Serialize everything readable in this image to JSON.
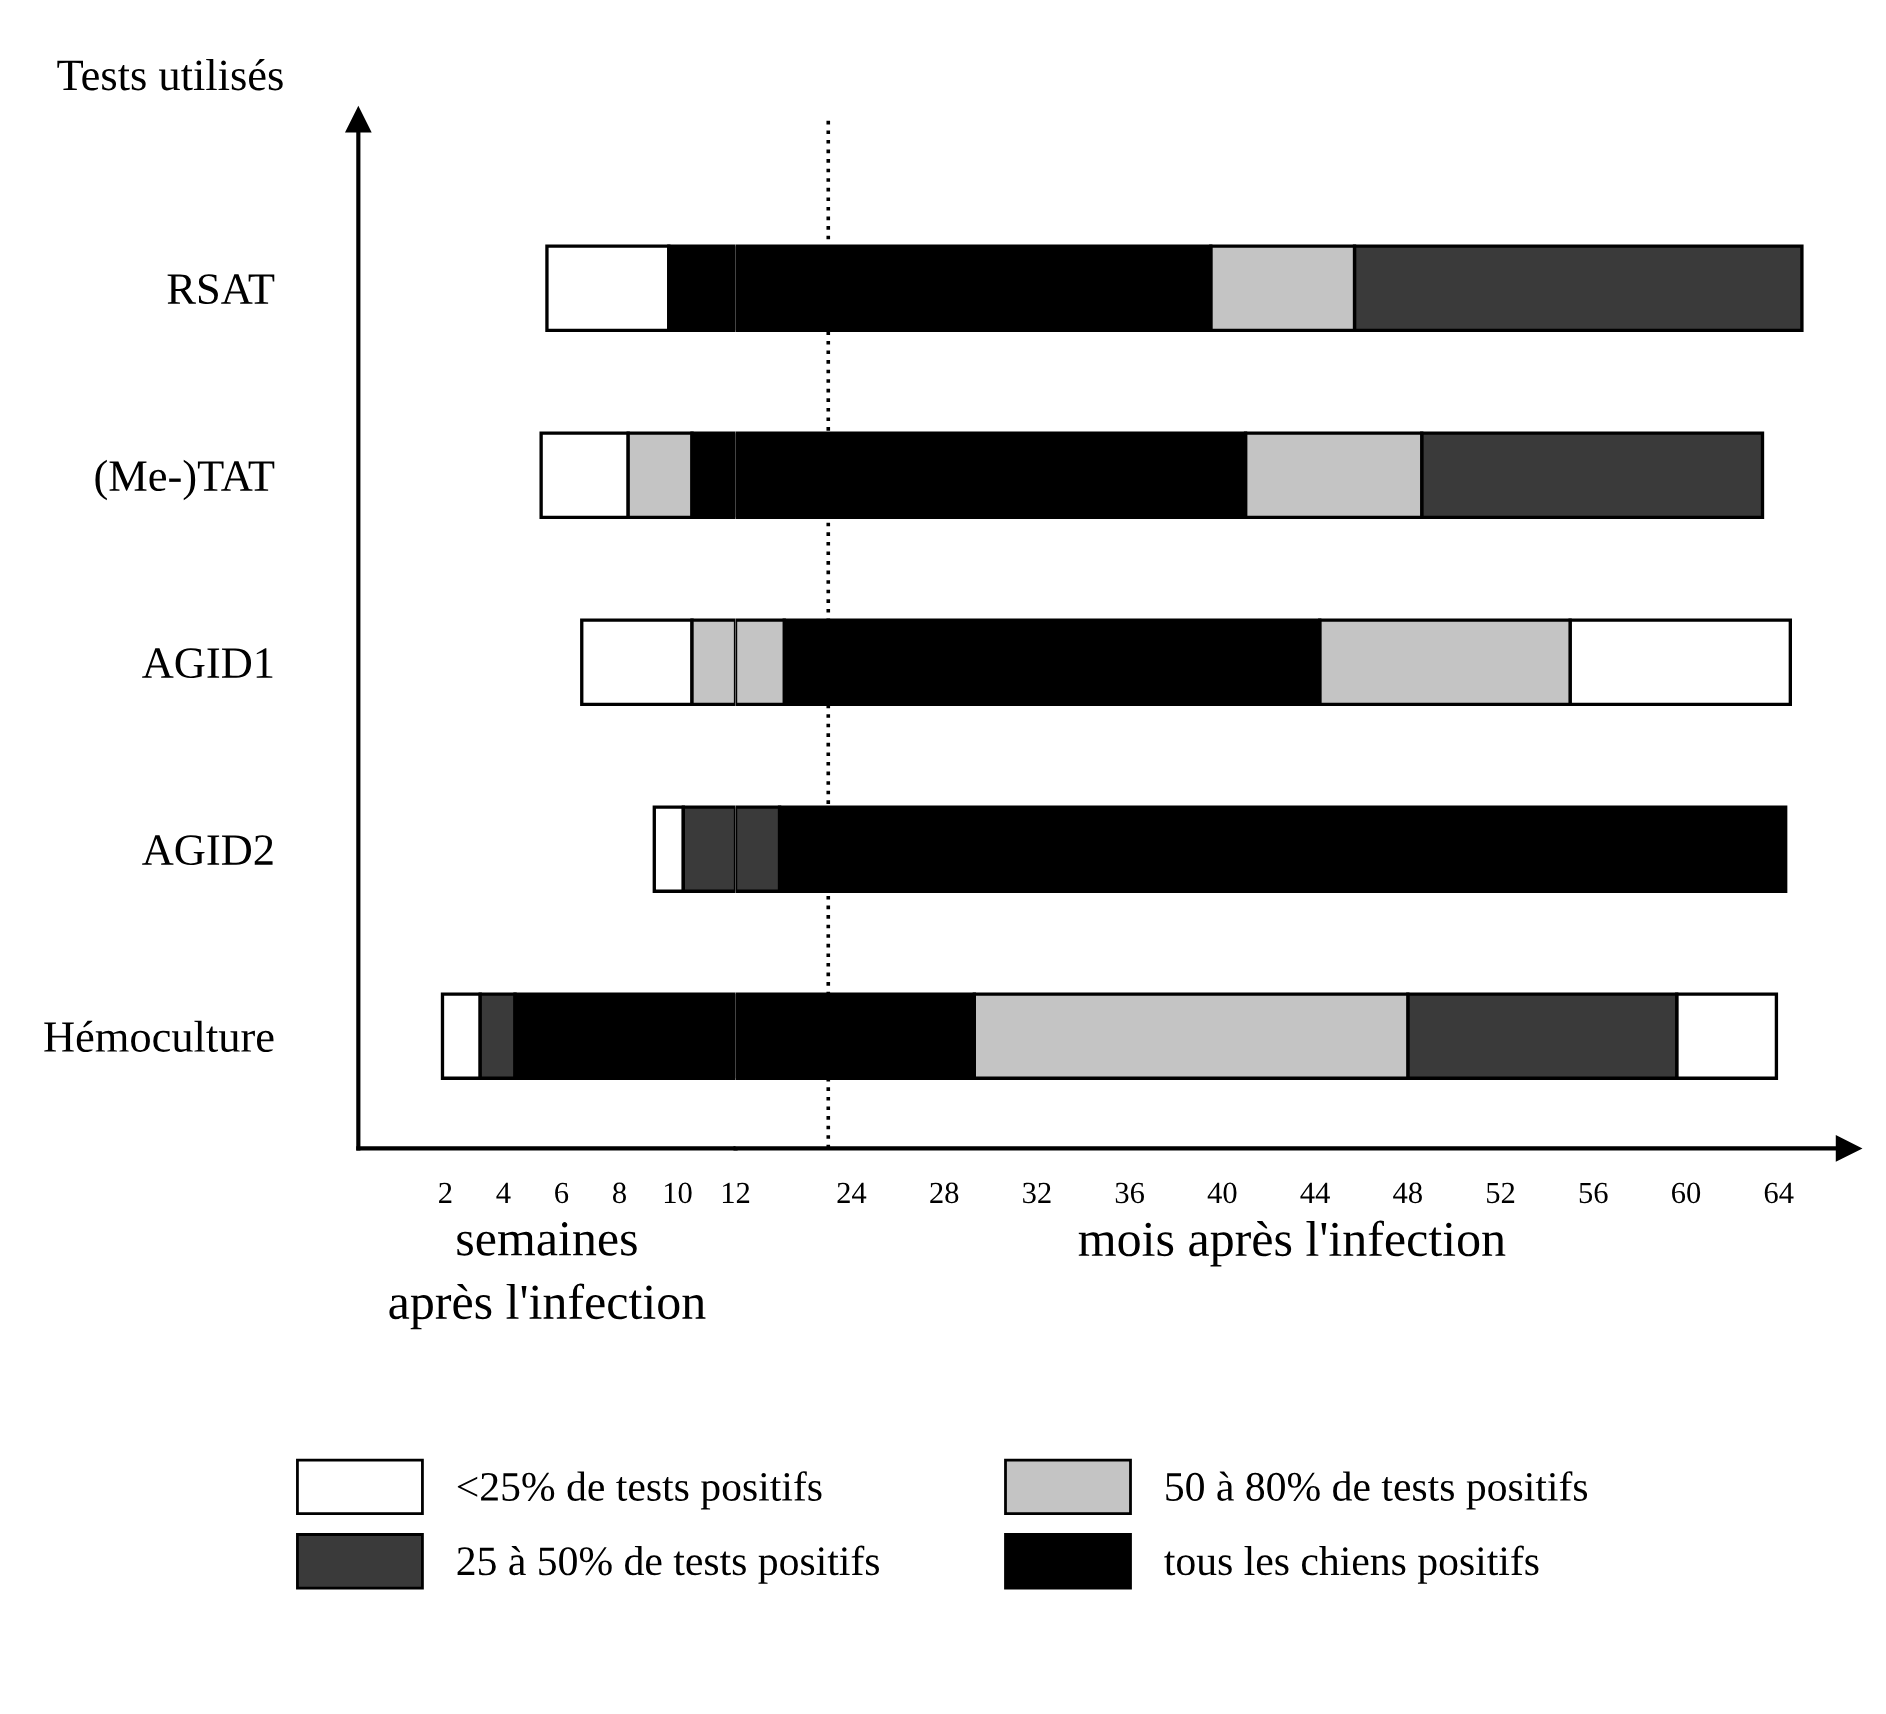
{
  "chart_data": [
    {
      "type": "bar",
      "orientation": "horizontal",
      "categories": [
        "RSAT",
        "(Me-)TAT",
        "AGID1",
        "AGID2",
        "Hémoculture"
      ],
      "ylabel": "Tests utilisés",
      "xlabel": "semaines\naprès l'infection",
      "series": [
        {
          "name": "<25% de tests positifs",
          "color": "#ffffff",
          "base": [
            5.5,
            5.3,
            6.7,
            9.2,
            1.9
          ],
          "values": [
            4.2,
            3.0,
            3.8,
            1.0,
            1.3
          ]
        },
        {
          "name": "25 à 50% de tests positifs",
          "color": "#3a3a3a",
          "base": [
            null,
            null,
            null,
            10.2,
            3.2
          ],
          "values": [
            null,
            null,
            null,
            1.8,
            1.2
          ]
        },
        {
          "name": "50 à 80% de tests positifs",
          "color": "#c4c4c4",
          "base": [
            null,
            8.3,
            10.5,
            null,
            null
          ],
          "values": [
            null,
            2.2,
            1.5,
            null,
            null
          ]
        },
        {
          "name": "tous les chiens positifs",
          "color": "#000000",
          "base": [
            9.7,
            10.5,
            null,
            null,
            4.4
          ],
          "values": [
            2.3,
            1.5,
            null,
            null,
            7.6
          ]
        }
      ],
      "xlim": [
        -1,
        12
      ],
      "xticks": [
        2,
        4,
        6,
        8,
        10,
        12
      ],
      "grid": false,
      "legend": "bottom"
    },
    {
      "type": "bar",
      "orientation": "horizontal",
      "categories": [
        null,
        null,
        null,
        null,
        null
      ],
      "xlabel": "mois après l'infection",
      "tick_labels": "x",
      "series": [
        {
          "color": "#ffffff",
          "base": [
            null,
            null,
            55.0,
            null,
            59.6
          ],
          "values": [
            null,
            null,
            9.5,
            null,
            4.3
          ]
        },
        {
          "color": "#3a3a3a",
          "base": [
            45.7,
            48.6,
            null,
            19,
            48.0
          ],
          "values": [
            19.3,
            14.7,
            null,
            1.9,
            11.6
          ]
        },
        {
          "color": "#c4c4c4",
          "base": [
            39.5,
            41.0,
            44.2,
            null,
            29.3
          ],
          "values": [
            6.2,
            7.6,
            10.8,
            null,
            18.7
          ]
        },
        {
          "color": "#000000",
          "base": [
            19,
            19,
            21.1,
            20.9,
            19
          ],
          "values": [
            20.5,
            22.0,
            23.1,
            43.4,
            10.3
          ]
        },
        {
          "color": "#c4c4c4",
          "base": [
            null,
            null,
            19,
            null,
            null
          ],
          "values": [
            null,
            null,
            2.1,
            null,
            null
          ]
        }
      ],
      "xlim": [
        19,
        67
      ],
      "xticks": [
        24,
        28,
        32,
        36,
        40,
        44,
        48,
        52,
        56,
        60,
        64
      ],
      "ref_lines": [
        {
          "axis": "x",
          "value": 23,
          "line_style": "dotted",
          "color": "#000000"
        }
      ],
      "grid": false
    }
  ]
}
